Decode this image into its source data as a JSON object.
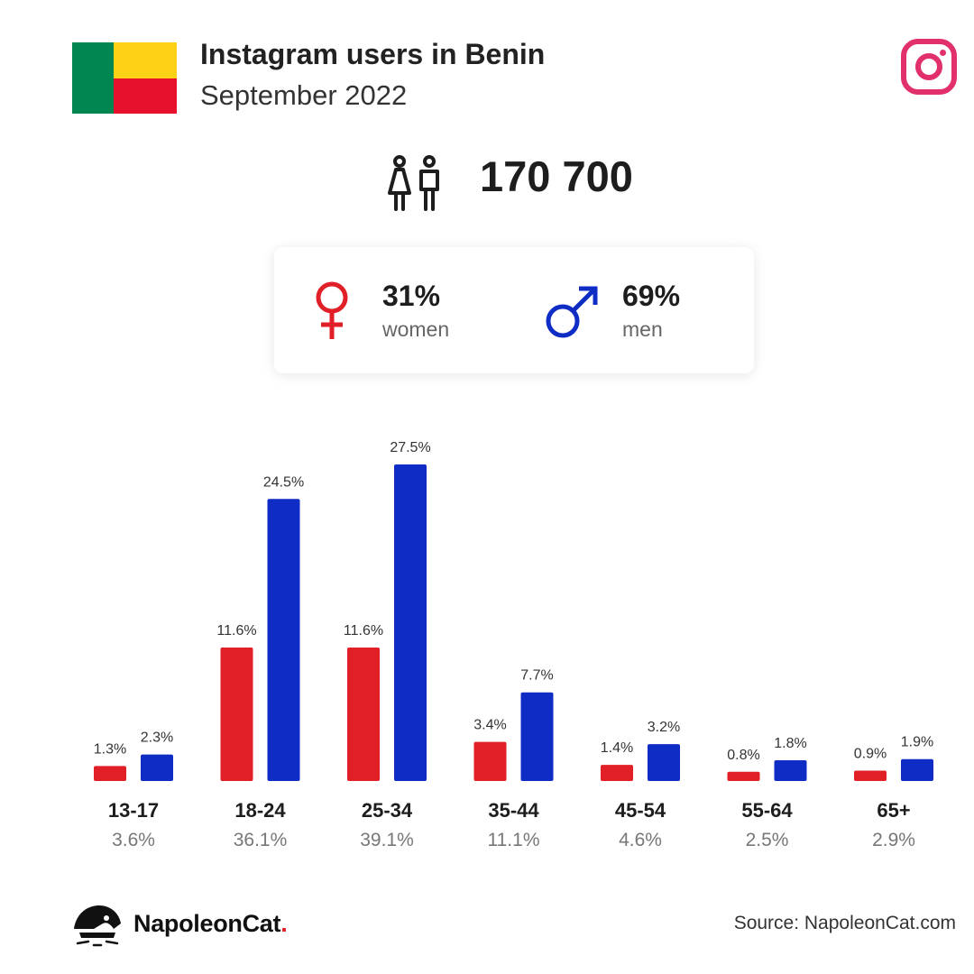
{
  "header": {
    "title": "Instagram users in Benin",
    "subtitle": "September 2022"
  },
  "flag_colors": {
    "green": "#008751",
    "yellow": "#FCD116",
    "red": "#E8112D"
  },
  "icons": {
    "brand": "instagram-icon",
    "people": "people-icon",
    "female": "female-symbol-icon",
    "male": "male-symbol-icon",
    "logo": "napoleoncat-logo-icon"
  },
  "total": {
    "value": "170 700"
  },
  "gender": {
    "women": {
      "pct": "31%",
      "label": "women",
      "color": "#e01f26"
    },
    "men": {
      "pct": "69%",
      "label": "men",
      "color": "#0f2cc4"
    }
  },
  "chart_data": {
    "type": "bar",
    "categories": [
      "13-17",
      "18-24",
      "25-34",
      "35-44",
      "45-54",
      "55-64",
      "65+"
    ],
    "category_totals": [
      "3.6%",
      "36.1%",
      "39.1%",
      "11.1%",
      "4.6%",
      "2.5%",
      "2.9%"
    ],
    "series": [
      {
        "key": "women",
        "color": "#e01f26",
        "values": [
          1.3,
          11.6,
          11.6,
          3.4,
          1.4,
          0.8,
          0.9
        ]
      },
      {
        "key": "men",
        "color": "#0f2cc4",
        "values": [
          2.3,
          24.5,
          27.5,
          7.7,
          3.2,
          1.8,
          1.9
        ]
      }
    ],
    "ylim": [
      0,
      27.5
    ],
    "value_suffix": "%"
  },
  "footer": {
    "brand": "NapoleonCat",
    "brand_dot": ".",
    "source": "Source: NapoleonCat.com"
  }
}
